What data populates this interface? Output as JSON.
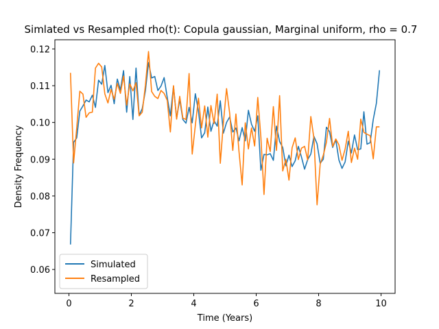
{
  "chart_data": {
    "type": "line",
    "title": "Simlated vs Resampled rho(t): Copula gaussian, Marginal uniform, rho =  0.7",
    "xlabel": "Time (Years)",
    "ylabel": "Density Frequency",
    "xlim": [
      -0.45,
      10.45
    ],
    "ylim": [
      0.0535,
      0.1225
    ],
    "xticks": [
      0,
      2,
      4,
      6,
      8,
      10
    ],
    "yticks": [
      0.06,
      0.07,
      0.08,
      0.09,
      0.1,
      0.11,
      0.12
    ],
    "ytick_labels": [
      "0.06",
      "0.07",
      "0.08",
      "0.09",
      "0.10",
      "0.11",
      "0.12"
    ],
    "grid": false,
    "legend": "lower-left",
    "x": [
      0.05,
      0.15,
      0.25,
      0.35,
      0.45,
      0.55,
      0.65,
      0.75,
      0.85,
      0.95,
      1.05,
      1.15,
      1.25,
      1.35,
      1.45,
      1.55,
      1.65,
      1.75,
      1.85,
      1.95,
      2.05,
      2.15,
      2.25,
      2.35,
      2.45,
      2.55,
      2.65,
      2.75,
      2.85,
      2.95,
      3.05,
      3.15,
      3.25,
      3.35,
      3.45,
      3.55,
      3.65,
      3.75,
      3.85,
      3.95,
      4.05,
      4.15,
      4.25,
      4.35,
      4.45,
      4.55,
      4.65,
      4.75,
      4.85,
      4.95,
      5.05,
      5.15,
      5.25,
      5.35,
      5.45,
      5.55,
      5.65,
      5.75,
      5.85,
      5.95,
      6.05,
      6.15,
      6.25,
      6.35,
      6.45,
      6.55,
      6.65,
      6.75,
      6.85,
      6.95,
      7.05,
      7.15,
      7.25,
      7.35,
      7.45,
      7.55,
      7.65,
      7.75,
      7.85,
      7.95,
      8.05,
      8.15,
      8.25,
      8.35,
      8.45,
      8.55,
      8.65,
      8.75,
      8.85,
      8.95,
      9.05,
      9.15,
      9.25,
      9.35,
      9.45,
      9.55,
      9.65,
      9.75,
      9.85,
      9.95
    ],
    "series": [
      {
        "name": "Simulated",
        "color": "#1f77b4",
        "values": [
          0.0668,
          0.0946,
          0.0958,
          0.1031,
          0.1045,
          0.1061,
          0.1056,
          0.1074,
          0.1041,
          0.1115,
          0.1104,
          0.1155,
          0.1081,
          0.1101,
          0.1051,
          0.1118,
          0.1088,
          0.1141,
          0.1028,
          0.1125,
          0.1008,
          0.1148,
          0.1019,
          0.1038,
          0.1086,
          0.1163,
          0.1121,
          0.1125,
          0.1087,
          0.1099,
          0.1122,
          0.1068,
          0.1018,
          0.1098,
          0.1011,
          0.1063,
          0.1008,
          0.0998,
          0.1041,
          0.0999,
          0.1078,
          0.1031,
          0.0958,
          0.0972,
          0.1042,
          0.0976,
          0.1005,
          0.099,
          0.1059,
          0.0971,
          0.1,
          0.1015,
          0.0974,
          0.0985,
          0.095,
          0.0986,
          0.095,
          0.1033,
          0.0995,
          0.0976,
          0.1018,
          0.087,
          0.0913,
          0.0912,
          0.0915,
          0.0897,
          0.099,
          0.0948,
          0.0932,
          0.0882,
          0.0911,
          0.088,
          0.0896,
          0.0935,
          0.0906,
          0.0873,
          0.0899,
          0.0914,
          0.0962,
          0.0942,
          0.0889,
          0.09,
          0.0987,
          0.0975,
          0.0932,
          0.0953,
          0.0898,
          0.0875,
          0.0893,
          0.0949,
          0.0917,
          0.0966,
          0.0926,
          0.0928,
          0.1029,
          0.0941,
          0.0945,
          0.1008,
          0.1052,
          0.1142
        ]
      },
      {
        "name": "Resampled",
        "color": "#ff7f0e",
        "values": [
          0.1135,
          0.089,
          0.0985,
          0.1085,
          0.1077,
          0.1014,
          0.1026,
          0.1028,
          0.1148,
          0.1161,
          0.1151,
          0.1078,
          0.1053,
          0.109,
          0.1063,
          0.1106,
          0.1079,
          0.1126,
          0.1047,
          0.1105,
          0.1086,
          0.1108,
          0.1018,
          0.1028,
          0.1101,
          0.1193,
          0.1084,
          0.1071,
          0.1065,
          0.1087,
          0.1079,
          0.106,
          0.0974,
          0.11,
          0.1009,
          0.1071,
          0.1012,
          0.1008,
          0.1133,
          0.0914,
          0.0992,
          0.1066,
          0.0985,
          0.1045,
          0.096,
          0.1046,
          0.0997,
          0.1077,
          0.0889,
          0.1,
          0.1092,
          0.1025,
          0.0924,
          0.1023,
          0.092,
          0.083,
          0.0999,
          0.0928,
          0.0985,
          0.0936,
          0.1068,
          0.096,
          0.0804,
          0.0957,
          0.0921,
          0.1043,
          0.0924,
          0.1073,
          0.0868,
          0.09,
          0.0843,
          0.0931,
          0.0958,
          0.0899,
          0.093,
          0.0935,
          0.0898,
          0.1016,
          0.0956,
          0.0776,
          0.0887,
          0.0911,
          0.0946,
          0.1011,
          0.0935,
          0.0955,
          0.0939,
          0.0897,
          0.0928,
          0.0976,
          0.0891,
          0.093,
          0.09,
          0.1009,
          0.0973,
          0.0968,
          0.0964,
          0.0901,
          0.0988,
          0.0988
        ]
      }
    ]
  }
}
